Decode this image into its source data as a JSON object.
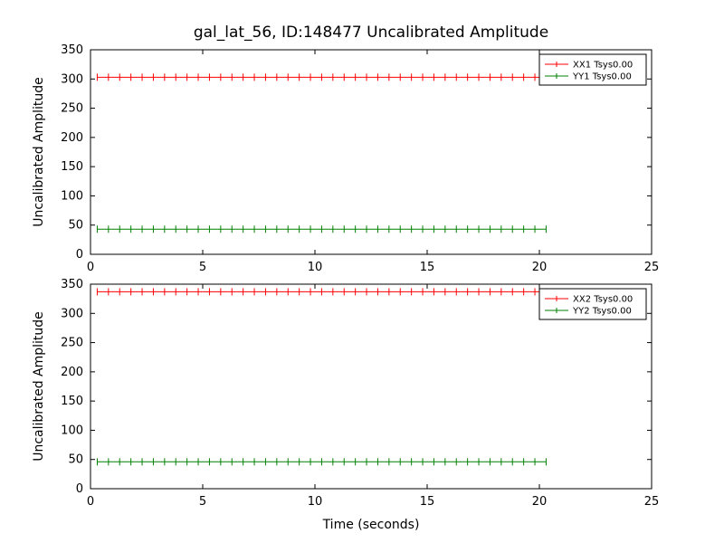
{
  "title": "gal_lat_56, ID:148477 Uncalibrated Amplitude",
  "chart_data": [
    {
      "type": "line",
      "subplot": "top",
      "title": "",
      "xlabel": "",
      "ylabel": "Uncalibrated Amplitude",
      "xlim": [
        0,
        25
      ],
      "ylim": [
        0,
        350
      ],
      "xticks": [
        0,
        5,
        10,
        15,
        20,
        25
      ],
      "yticks": [
        0,
        50,
        100,
        150,
        200,
        250,
        300,
        350
      ],
      "grid": false,
      "legend_position": "upper right",
      "marker": "plus-errorbar",
      "x_start": 0.3,
      "x_end": 20.3,
      "n_points": 41,
      "series": [
        {
          "name": "XX1 Tsys0.00",
          "color": "#ff0000",
          "value": 303
        },
        {
          "name": "YY1 Tsys0.00",
          "color": "#008000",
          "value": 43
        }
      ]
    },
    {
      "type": "line",
      "subplot": "bottom",
      "title": "",
      "xlabel": "Time (seconds)",
      "ylabel": "Uncalibrated Amplitude",
      "xlim": [
        0,
        25
      ],
      "ylim": [
        0,
        350
      ],
      "xticks": [
        0,
        5,
        10,
        15,
        20,
        25
      ],
      "yticks": [
        0,
        50,
        100,
        150,
        200,
        250,
        300,
        350
      ],
      "grid": false,
      "legend_position": "upper right",
      "marker": "plus-errorbar",
      "x_start": 0.3,
      "x_end": 20.3,
      "n_points": 41,
      "series": [
        {
          "name": "XX2 Tsys0.00",
          "color": "#ff0000",
          "value": 337
        },
        {
          "name": "YY2 Tsys0.00",
          "color": "#008000",
          "value": 46
        }
      ]
    }
  ]
}
